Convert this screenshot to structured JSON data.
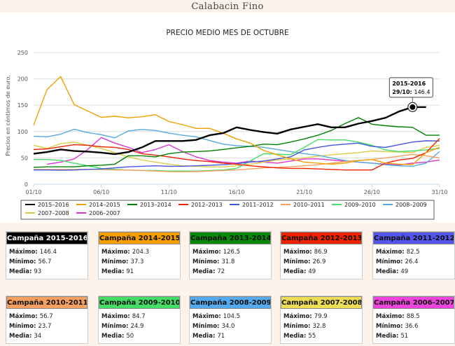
{
  "page": {
    "title": "Calabacin Fino"
  },
  "chart_data": {
    "type": "line",
    "title": "PRECIO MEDIO MES DE OCTUBRE",
    "ylabel": "Precios en céntimos de euro.",
    "xlabel": "",
    "ylim": [
      0,
      250
    ],
    "yticks": [
      0,
      50,
      100,
      150,
      200,
      250
    ],
    "x_tick_labels": [
      "01/10",
      "06/10",
      "11/10",
      "16/10",
      "21/10",
      "26/10",
      "31/10"
    ],
    "x_tick_days": [
      1,
      6,
      11,
      16,
      21,
      26,
      31
    ],
    "grid": true,
    "legend_position": "bottom",
    "tooltip": {
      "title": "2015-2016",
      "label": "29/10:",
      "value": "146.4",
      "series": "2015–2016",
      "day": 29
    },
    "series": [
      {
        "name": "2015–2016",
        "color": "#000000",
        "width": 2.4,
        "days": [
          1,
          2,
          3,
          4,
          5,
          6,
          7,
          8,
          9,
          10,
          11,
          12,
          13,
          14,
          15,
          16,
          17,
          18,
          19,
          20,
          21,
          22,
          23,
          24,
          25,
          26,
          27,
          28,
          29,
          30
        ],
        "values": [
          58,
          61,
          66,
          63,
          62,
          60,
          57,
          61,
          70,
          82,
          82,
          82,
          84,
          93,
          97,
          108,
          103,
          99,
          96,
          104,
          109,
          114,
          108,
          108,
          115,
          120,
          126,
          138,
          146.4,
          146.4
        ]
      },
      {
        "name": "2014–2015",
        "color": "#f0a000",
        "width": 1.4,
        "days": [
          1,
          2,
          3,
          4,
          5,
          6,
          7,
          8,
          9,
          10,
          11,
          12,
          13,
          14,
          15,
          16,
          17,
          18,
          19,
          20,
          21,
          22,
          23,
          24,
          25,
          26,
          27,
          28,
          29,
          30,
          31
        ],
        "values": [
          112,
          180,
          204.3,
          151,
          139,
          127,
          129,
          126,
          128,
          132,
          119,
          113,
          106,
          106,
          97,
          86,
          78,
          64,
          56,
          48,
          42,
          40,
          38,
          40,
          45,
          47,
          40,
          38,
          37.3,
          60,
          70
        ]
      },
      {
        "name": "2013–2014",
        "color": "#008000",
        "width": 1.4,
        "days": [
          1,
          2,
          3,
          4,
          5,
          6,
          7,
          8,
          9,
          10,
          11,
          12,
          13,
          14,
          15,
          16,
          17,
          18,
          19,
          20,
          21,
          22,
          23,
          24,
          25,
          26,
          27,
          28,
          29,
          30,
          31
        ],
        "values": [
          32,
          33,
          33,
          33,
          35,
          36,
          38,
          54,
          54,
          52,
          58,
          61,
          62,
          63,
          66,
          69,
          72,
          76,
          75,
          80,
          86,
          93,
          102,
          115,
          126.5,
          114,
          111,
          109,
          108,
          93,
          93
        ]
      },
      {
        "name": "2012–2013",
        "color": "#ee2200",
        "width": 1.4,
        "days": [
          1,
          2,
          3,
          4,
          5,
          6,
          7,
          8,
          9,
          10,
          11,
          12,
          13,
          14,
          15,
          16,
          17,
          18,
          19,
          20,
          21,
          22,
          23,
          24,
          25,
          26,
          27,
          28,
          29,
          30,
          31
        ],
        "values": [
          66,
          67,
          71,
          75,
          74,
          71,
          70,
          66,
          58,
          55,
          52,
          48,
          45,
          43,
          40,
          38,
          35,
          33,
          31,
          30,
          30,
          29,
          28,
          27,
          27,
          27,
          40,
          46,
          49,
          60,
          86.9
        ]
      },
      {
        "name": "2011–2012",
        "color": "#4455dd",
        "width": 1.4,
        "days": [
          1,
          2,
          3,
          4,
          5,
          6,
          7,
          8,
          9,
          10,
          11,
          12,
          13,
          14,
          15,
          16,
          17,
          18,
          19,
          20,
          21,
          22,
          23,
          24,
          25,
          26,
          27,
          28,
          29,
          30,
          31
        ],
        "values": [
          27,
          27,
          26.4,
          27,
          28,
          29,
          31,
          33,
          34,
          35,
          34,
          34,
          35,
          36,
          37,
          39,
          42,
          44,
          48,
          52,
          65,
          70,
          74,
          76,
          78,
          72,
          70,
          75,
          80,
          82.5,
          82
        ]
      },
      {
        "name": "2010–2011",
        "color": "#f5a060",
        "width": 1.4,
        "days": [
          1,
          2,
          3,
          4,
          5,
          6,
          7,
          8,
          9,
          10,
          11,
          12,
          13,
          14,
          15,
          16,
          17,
          18,
          19,
          20,
          21,
          22,
          23,
          24,
          25,
          26,
          27,
          28,
          29,
          30,
          31
        ],
        "values": [
          28,
          28,
          28,
          28,
          28,
          28,
          27,
          27,
          26,
          25,
          24,
          23.7,
          24,
          25,
          26,
          27,
          29,
          31,
          32,
          33,
          35,
          37,
          40,
          43,
          45,
          47,
          50,
          53,
          56.7,
          54,
          50
        ]
      },
      {
        "name": "2009–2010",
        "color": "#44dd66",
        "width": 1.4,
        "days": [
          1,
          2,
          3,
          4,
          5,
          6,
          7,
          8,
          9,
          10,
          11,
          12,
          13,
          14,
          15,
          16,
          17,
          18,
          19,
          20,
          21,
          22,
          23,
          24,
          25,
          26,
          27,
          28,
          29,
          30,
          31
        ],
        "values": [
          47,
          47,
          45,
          40,
          35,
          30,
          28,
          27,
          26,
          26,
          25,
          25,
          24.9,
          26,
          27,
          30,
          44,
          58,
          57,
          56,
          70,
          84.7,
          84,
          84,
          80,
          74,
          65,
          62,
          63,
          65,
          68
        ]
      },
      {
        "name": "2008–2009",
        "color": "#55aadd",
        "width": 1.4,
        "days": [
          1,
          2,
          3,
          4,
          5,
          6,
          7,
          8,
          9,
          10,
          11,
          12,
          13,
          14,
          15,
          16,
          17,
          18,
          19,
          20,
          21,
          22,
          23,
          24,
          25,
          26,
          27,
          28,
          29,
          30,
          31
        ],
        "values": [
          91,
          90,
          95,
          104.5,
          98,
          94,
          88,
          101,
          104,
          102,
          97,
          93,
          90,
          83,
          76,
          73,
          72,
          70,
          66,
          62,
          58,
          55,
          50,
          45,
          42,
          40,
          37,
          35,
          34,
          40,
          62
        ]
      },
      {
        "name": "2007–2008",
        "color": "#ddcc44",
        "width": 1.4,
        "days": [
          1,
          2,
          3,
          4,
          5,
          6,
          7,
          8,
          9,
          10,
          11,
          12,
          13,
          14,
          15,
          16,
          17,
          18,
          19,
          20,
          21,
          22,
          23,
          24,
          25,
          26,
          27,
          28,
          29,
          30,
          31
        ],
        "values": [
          74,
          68,
          77,
          79.9,
          74,
          68,
          60,
          52,
          46,
          42,
          38,
          35,
          34,
          33,
          32.8,
          35,
          38,
          42,
          46,
          48,
          50,
          53,
          56,
          58,
          60,
          63,
          62,
          61,
          60,
          70,
          74
        ]
      },
      {
        "name": "2006–2007",
        "color": "#dd33cc",
        "width": 1.4,
        "days": [
          2,
          3,
          4,
          5,
          6,
          7,
          8,
          9,
          10,
          11,
          12,
          13,
          14,
          15,
          16,
          17,
          18,
          19,
          20,
          21,
          22,
          23,
          24,
          25,
          26,
          27,
          28,
          29,
          30,
          31
        ],
        "values": [
          38,
          42,
          48,
          66,
          88.5,
          78,
          70,
          60,
          66,
          75,
          62,
          52,
          45,
          42,
          40,
          44,
          42,
          40,
          44,
          48,
          48,
          46,
          44,
          42,
          40,
          38,
          36.6,
          40,
          42,
          46
        ]
      }
    ]
  },
  "stats": {
    "max_label": "Máximo:",
    "min_label": "Mínimo:",
    "mean_label": "Media:",
    "cards": [
      {
        "title": "Campaña 2015-2016",
        "color": "#000000",
        "dark": true,
        "max": "146.4",
        "min": "56.7",
        "mean": "93"
      },
      {
        "title": "Campaña 2014-2015",
        "color": "#f5a000",
        "dark": false,
        "max": "204.3",
        "min": "37.3",
        "mean": "91"
      },
      {
        "title": "Campaña 2013-2014",
        "color": "#0a8a0a",
        "dark": false,
        "max": "126.5",
        "min": "31.8",
        "mean": "72"
      },
      {
        "title": "Campaña 2012-2013",
        "color": "#ee2200",
        "dark": false,
        "max": "86.9",
        "min": "26.9",
        "mean": "49"
      },
      {
        "title": "Campaña 2011-2012",
        "color": "#5555ee",
        "dark": false,
        "max": "82.5",
        "min": "26.4",
        "mean": "49"
      },
      {
        "title": "Campaña 2010-2011",
        "color": "#f5a060",
        "dark": false,
        "max": "56.7",
        "min": "23.7",
        "mean": "34"
      },
      {
        "title": "Campaña 2009-2010",
        "color": "#44dd66",
        "dark": false,
        "max": "84.7",
        "min": "24.9",
        "mean": "50"
      },
      {
        "title": "Campaña 2008-2009",
        "color": "#55aaee",
        "dark": false,
        "max": "104.5",
        "min": "34.0",
        "mean": "71"
      },
      {
        "title": "Campaña 2007-2008",
        "color": "#eedd55",
        "dark": false,
        "max": "79.9",
        "min": "32.8",
        "mean": "55"
      },
      {
        "title": "Campaña 2006-2007",
        "color": "#ee44dd",
        "dark": false,
        "max": "88.5",
        "min": "36.6",
        "mean": "51"
      }
    ]
  }
}
